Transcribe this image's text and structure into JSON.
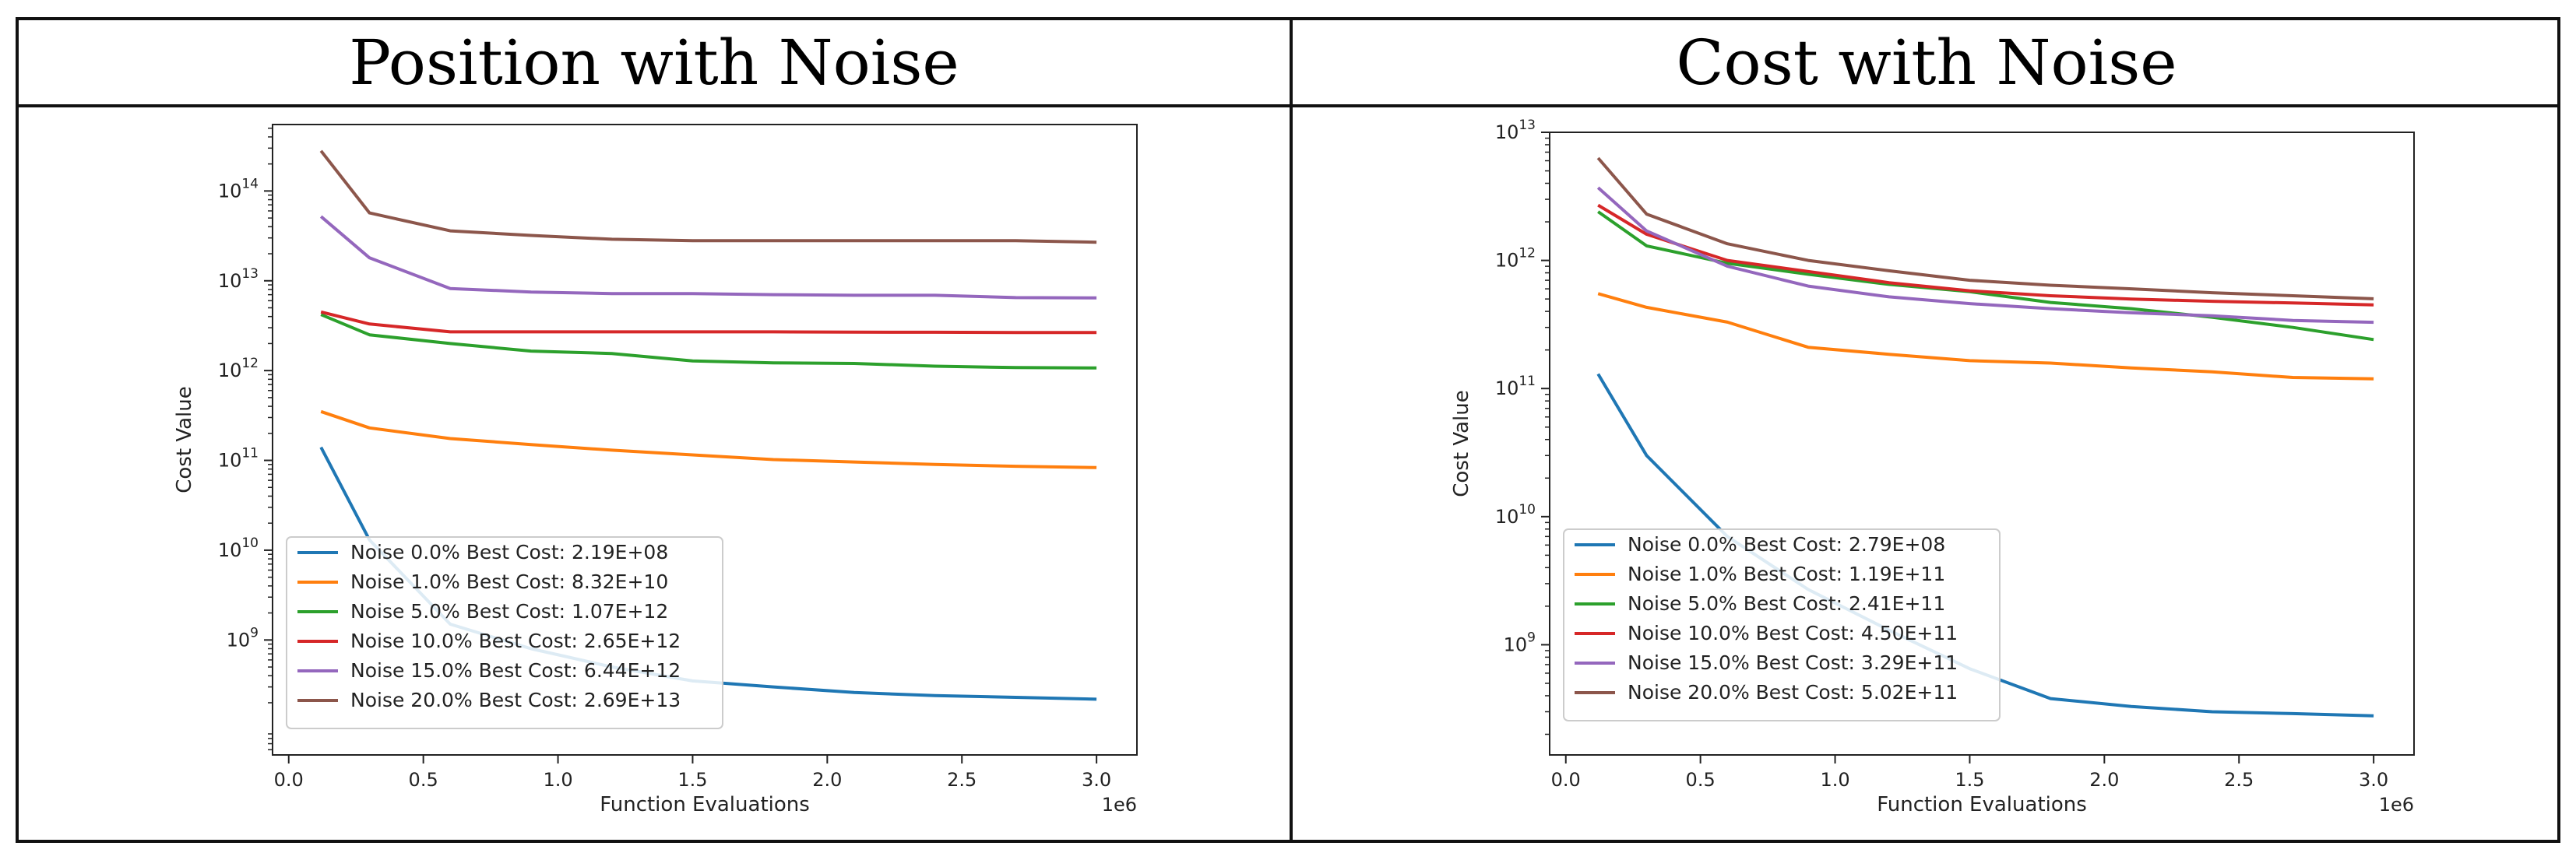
{
  "panels": {
    "left_title": "Position with Noise",
    "right_title": "Cost with Noise"
  },
  "chart_data": [
    {
      "type": "line",
      "title": "Position with Noise",
      "xlabel": "Function Evaluations",
      "ylabel": "Cost Value",
      "x_offset_label": "1e6",
      "yscale": "log",
      "xlim": [
        -0.06,
        3.15
      ],
      "ylim_log10": [
        7.72,
        14.74
      ],
      "x_ticks": [
        0.0,
        0.5,
        1.0,
        1.5,
        2.0,
        2.5,
        3.0
      ],
      "x_tick_labels": [
        "0.0",
        "0.5",
        "1.0",
        "1.5",
        "2.0",
        "2.5",
        "3.0"
      ],
      "y_ticks": [
        {
          "base": "10",
          "exp": "9",
          "log": 9
        },
        {
          "base": "10",
          "exp": "10",
          "log": 10
        },
        {
          "base": "10",
          "exp": "11",
          "log": 11
        },
        {
          "base": "10",
          "exp": "12",
          "log": 12
        },
        {
          "base": "10",
          "exp": "13",
          "log": 13
        },
        {
          "base": "10",
          "exp": "14",
          "log": 14
        }
      ],
      "legend_position": "lower-left",
      "x": [
        0.12,
        0.3,
        0.6,
        0.9,
        1.2,
        1.5,
        1.8,
        2.1,
        2.4,
        2.7,
        3.0
      ],
      "series": [
        {
          "name": "Noise  0.0% Best Cost: 2.19E+08",
          "color": "#1f77b4",
          "values": [
            140000000000.0,
            13000000000.0,
            1500000000.0,
            800000000.0,
            500000000.0,
            350000000.0,
            300000000.0,
            260000000.0,
            240000000.0,
            230000000.0,
            219000000.0
          ]
        },
        {
          "name": "Noise  1.0% Best Cost: 8.32E+10",
          "color": "#ff7f0e",
          "values": [
            350000000000.0,
            230000000000.0,
            175000000000.0,
            150000000000.0,
            130000000000.0,
            115000000000.0,
            102000000000.0,
            96000000000.0,
            90000000000.0,
            86000000000.0,
            83200000000.0
          ]
        },
        {
          "name": "Noise  5.0% Best Cost: 1.07E+12",
          "color": "#2ca02c",
          "values": [
            4200000000000.0,
            2500000000000.0,
            2000000000000.0,
            1650000000000.0,
            1550000000000.0,
            1280000000000.0,
            1220000000000.0,
            1200000000000.0,
            1120000000000.0,
            1080000000000.0,
            1070000000000.0
          ]
        },
        {
          "name": "Noise  10.0% Best Cost: 2.65E+12",
          "color": "#d62728",
          "values": [
            4500000000000.0,
            3300000000000.0,
            2700000000000.0,
            2700000000000.0,
            2700000000000.0,
            2700000000000.0,
            2700000000000.0,
            2680000000000.0,
            2670000000000.0,
            2650000000000.0,
            2650000000000.0
          ]
        },
        {
          "name": "Noise  15.0% Best Cost: 6.44E+12",
          "color": "#9467bd",
          "values": [
            52000000000000.0,
            18000000000000.0,
            8200000000000.0,
            7500000000000.0,
            7200000000000.0,
            7200000000000.0,
            7000000000000.0,
            6900000000000.0,
            6900000000000.0,
            6500000000000.0,
            6440000000000.0
          ]
        },
        {
          "name": "Noise  20.0% Best Cost: 2.69E+13",
          "color": "#8c564b",
          "values": [
            280000000000000.0,
            57000000000000.0,
            36000000000000.0,
            32000000000000.0,
            29000000000000.0,
            28000000000000.0,
            28000000000000.0,
            28000000000000.0,
            28000000000000.0,
            28000000000000.0,
            26900000000000.0
          ]
        }
      ]
    },
    {
      "type": "line",
      "title": "Cost with Noise",
      "xlabel": "Function Evaluations",
      "ylabel": "Cost Value",
      "x_offset_label": "1e6",
      "yscale": "log",
      "xlim": [
        -0.06,
        3.15
      ],
      "ylim_log10": [
        8.14,
        13.0
      ],
      "x_ticks": [
        0.0,
        0.5,
        1.0,
        1.5,
        2.0,
        2.5,
        3.0
      ],
      "x_tick_labels": [
        "0.0",
        "0.5",
        "1.0",
        "1.5",
        "2.0",
        "2.5",
        "3.0"
      ],
      "y_ticks": [
        {
          "base": "10",
          "exp": "9",
          "log": 9
        },
        {
          "base": "10",
          "exp": "10",
          "log": 10
        },
        {
          "base": "10",
          "exp": "11",
          "log": 11
        },
        {
          "base": "10",
          "exp": "12",
          "log": 12
        },
        {
          "base": "10",
          "exp": "13",
          "log": 13
        }
      ],
      "legend_position": "lower-left",
      "x": [
        0.12,
        0.3,
        0.6,
        0.9,
        1.2,
        1.5,
        1.8,
        2.1,
        2.4,
        2.7,
        3.0
      ],
      "series": [
        {
          "name": "Noise  0.0% Best Cost: 2.79E+08",
          "color": "#1f77b4",
          "values": [
            130000000000.0,
            30000000000.0,
            7000000000.0,
            2700000000.0,
            1300000000.0,
            650000000.0,
            380000000.0,
            330000000.0,
            300000000.0,
            290000000.0,
            279000000.0
          ]
        },
        {
          "name": "Noise  1.0% Best Cost: 1.19E+11",
          "color": "#ff7f0e",
          "values": [
            550000000000.0,
            430000000000.0,
            330000000000.0,
            210000000000.0,
            185000000000.0,
            165000000000.0,
            158000000000.0,
            145000000000.0,
            135000000000.0,
            122000000000.0,
            119000000000.0
          ]
        },
        {
          "name": "Noise  5.0% Best Cost: 2.41E+11",
          "color": "#2ca02c",
          "values": [
            2400000000000.0,
            1300000000000.0,
            950000000000.0,
            780000000000.0,
            650000000000.0,
            570000000000.0,
            470000000000.0,
            420000000000.0,
            360000000000.0,
            300000000000.0,
            241000000000.0
          ]
        },
        {
          "name": "Noise  10.0% Best Cost: 4.50E+11",
          "color": "#d62728",
          "values": [
            2700000000000.0,
            1600000000000.0,
            1000000000000.0,
            820000000000.0,
            670000000000.0,
            580000000000.0,
            530000000000.0,
            500000000000.0,
            480000000000.0,
            465000000000.0,
            450000000000.0
          ]
        },
        {
          "name": "Noise  15.0% Best Cost: 3.29E+11",
          "color": "#9467bd",
          "values": [
            3700000000000.0,
            1700000000000.0,
            900000000000.0,
            630000000000.0,
            520000000000.0,
            460000000000.0,
            420000000000.0,
            390000000000.0,
            370000000000.0,
            340000000000.0,
            329000000000.0
          ]
        },
        {
          "name": "Noise  20.0% Best Cost: 5.02E+11",
          "color": "#8c564b",
          "values": [
            6300000000000.0,
            2300000000000.0,
            1350000000000.0,
            1000000000000.0,
            830000000000.0,
            700000000000.0,
            640000000000.0,
            600000000000.0,
            560000000000.0,
            530000000000.0,
            502000000000.0
          ]
        }
      ]
    }
  ]
}
